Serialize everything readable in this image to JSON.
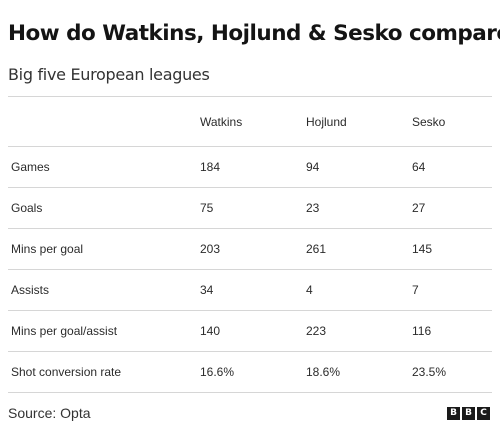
{
  "title": "How do Watkins, Hojlund & Sesko compare?",
  "subtitle": "Big five European leagues",
  "table": {
    "headers": [
      "",
      "Watkins",
      "Hojlund",
      "Sesko"
    ],
    "rows": [
      [
        "Games",
        "184",
        "94",
        "64"
      ],
      [
        "Goals",
        "75",
        "23",
        "27"
      ],
      [
        "Mins per goal",
        "203",
        "261",
        "145"
      ],
      [
        "Assists",
        "34",
        "4",
        "7"
      ],
      [
        "Mins per goal/assist",
        "140",
        "223",
        "116"
      ],
      [
        "Shot conversion rate",
        "16.6%",
        "18.6%",
        "23.5%"
      ]
    ]
  },
  "source": "Source: Opta",
  "logo": {
    "letters": [
      "B",
      "B",
      "C"
    ]
  },
  "colors": {
    "text": "#222222",
    "rule": "#d6d6d6",
    "logo": "#1a1a1a"
  }
}
